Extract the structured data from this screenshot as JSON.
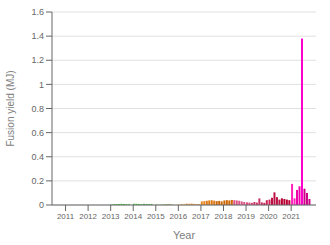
{
  "chart_data": {
    "type": "bar",
    "xlabel": "Year",
    "ylabel": "Fusion yield (MJ)",
    "xlim": [
      2010.4,
      2022.1
    ],
    "xticks": [
      2011,
      2012,
      2013,
      2014,
      2015,
      2016,
      2017,
      2018,
      2019,
      2020,
      2021
    ],
    "ylim": [
      0,
      1.6
    ],
    "yticks": [
      0,
      0.2,
      0.4,
      0.6,
      0.8,
      1.0,
      1.2,
      1.4,
      1.6
    ],
    "grid": "y",
    "x": [
      2011.45,
      2011.58,
      2011.71,
      2013.05,
      2013.16,
      2013.27,
      2013.38,
      2013.49,
      2013.6,
      2013.71,
      2013.82,
      2014.05,
      2014.16,
      2014.27,
      2014.38,
      2014.49,
      2014.6,
      2014.71,
      2014.82,
      2015.05,
      2015.16,
      2015.27,
      2015.38,
      2015.49,
      2015.6,
      2015.71,
      2016.05,
      2016.16,
      2016.27,
      2016.38,
      2016.49,
      2016.6,
      2016.71,
      2016.82,
      2016.93,
      2017.05,
      2017.16,
      2017.27,
      2017.38,
      2017.49,
      2017.6,
      2017.71,
      2017.82,
      2017.93,
      2018.05,
      2018.16,
      2018.27,
      2018.38,
      2018.49,
      2018.6,
      2018.71,
      2018.82,
      2018.93,
      2019.05,
      2019.16,
      2019.27,
      2019.38,
      2019.49,
      2019.6,
      2019.71,
      2019.82,
      2019.93,
      2020.05,
      2020.16,
      2020.27,
      2020.38,
      2020.49,
      2020.6,
      2020.71,
      2020.82,
      2020.93,
      2021.05,
      2021.16,
      2021.27,
      2021.38,
      2021.49,
      2021.6,
      2021.71,
      2021.82
    ],
    "values": [
      0.0004,
      0.0003,
      0.0003,
      0.004,
      0.006,
      0.007,
      0.009,
      0.01,
      0.008,
      0.007,
      0.006,
      0.011,
      0.01,
      0.009,
      0.008,
      0.01,
      0.009,
      0.008,
      0.009,
      0.003,
      0.002,
      0.003,
      0.004,
      0.006,
      0.005,
      0.004,
      0.005,
      0.009,
      0.008,
      0.011,
      0.01,
      0.012,
      0.009,
      0.008,
      0.007,
      0.03,
      0.032,
      0.035,
      0.038,
      0.04,
      0.036,
      0.032,
      0.034,
      0.03,
      0.038,
      0.04,
      0.038,
      0.042,
      0.04,
      0.038,
      0.035,
      0.03,
      0.025,
      0.022,
      0.02,
      0.018,
      0.025,
      0.02,
      0.055,
      0.022,
      0.018,
      0.04,
      0.045,
      0.06,
      0.105,
      0.065,
      0.045,
      0.055,
      0.05,
      0.045,
      0.04,
      0.175,
      0.055,
      0.125,
      0.155,
      1.38,
      0.135,
      0.1,
      0.05
    ],
    "colors": [
      "#22aa22",
      "#22aa22",
      "#22aa22",
      "#22bb22",
      "#22bb22",
      "#22bb22",
      "#33cc33",
      "#33cc33",
      "#33cc33",
      "#33cc33",
      "#33cc33",
      "#44cc44",
      "#44cc44",
      "#44cc44",
      "#55bb55",
      "#55bb55",
      "#55bb55",
      "#55bb55",
      "#55bb55",
      "#66bb33",
      "#66bb33",
      "#77aa22",
      "#77aa22",
      "#77aa22",
      "#77aa22",
      "#77aa22",
      "#ffbb66",
      "#ffbb66",
      "#ffbb66",
      "#ee9933",
      "#ee9933",
      "#ee9933",
      "#ee9933",
      "#ee9933",
      "#ee9933",
      "#ee8822",
      "#ee8822",
      "#dd7711",
      "#dd7711",
      "#dd7711",
      "#dd7711",
      "#cc6600",
      "#cc6600",
      "#cc6600",
      "#cc6600",
      "#cc6600",
      "#cc6600",
      "#cc6600",
      "#dd5588",
      "#dd5588",
      "#dd5588",
      "#dd5588",
      "#dd5588",
      "#dd4477",
      "#dd4477",
      "#dd4477",
      "#cc3366",
      "#cc3366",
      "#cc3366",
      "#cc3366",
      "#cc2255",
      "#cc2255",
      "#cc2255",
      "#bb1144",
      "#bb1144",
      "#bb1144",
      "#bb1144",
      "#bb0033",
      "#bb0033",
      "#bb0033",
      "#bb0033",
      "#ff22bb",
      "#ff22bb",
      "#ee00aa",
      "#ee00aa",
      "#ff00cc",
      "#cc0088",
      "#cc0088",
      "#cc0088"
    ]
  }
}
